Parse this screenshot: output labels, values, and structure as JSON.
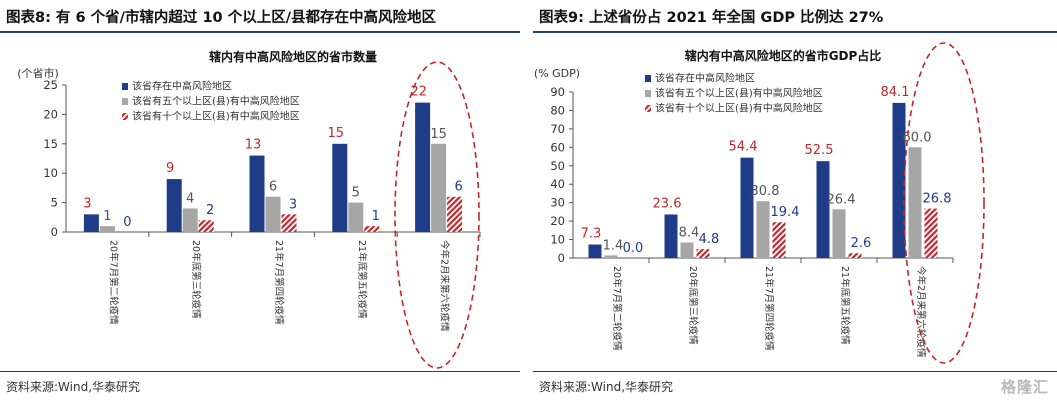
{
  "colors": {
    "navy": "#1f3c88",
    "gray": "#a6a6a6",
    "red": "#c0282d",
    "label_red": "#c0282d",
    "label_blue": "#1f3c88",
    "label_gray": "#555555",
    "axis": "#555555"
  },
  "footer": {
    "watermark": "格隆汇"
  },
  "panels": [
    {
      "title": "图表8:  有 6 个省/市辖内超过 10 个以上区/县都存在中高风险地区",
      "source": "资料来源:Wind,华泰研究",
      "chart_data": {
        "type": "bar",
        "title": "辖内有中高风险地区的省市数量",
        "ylabel": "(个省市)",
        "ylim": [
          0,
          25
        ],
        "yticks": [
          0,
          5,
          10,
          15,
          20,
          25
        ],
        "categories": [
          "20年7月第二轮疫情",
          "20年底第三轮疫情",
          "21年7月第四轮疫情",
          "21年底第五轮疫情",
          "今年2月来第六轮疫情"
        ],
        "series": [
          {
            "name": "该省存在中高风险地区",
            "values": [
              3,
              9,
              13,
              15,
              22
            ],
            "labels": [
              "3",
              "9",
              "13",
              "15",
              "22"
            ]
          },
          {
            "name": "该省有五个以上区(县)有中高风险地区",
            "values": [
              1,
              4,
              6,
              5,
              15
            ],
            "labels": [
              "1",
              "4",
              "6",
              "5",
              "15"
            ]
          },
          {
            "name": "该省有十个以上区(县)有中高风险地区",
            "values": [
              0,
              2,
              3,
              1,
              6
            ],
            "labels": [
              "0",
              "2",
              "3",
              "1",
              "6"
            ]
          }
        ],
        "highlight_category": 4
      }
    },
    {
      "title": "图表9:  上述省份占 2021 年全国 GDP 比例达 27%",
      "source": "资料来源:Wind,华泰研究",
      "chart_data": {
        "type": "bar",
        "title": "辖内有中高风险地区的省市GDP占比",
        "ylabel": "(% GDP)",
        "ylim": [
          0,
          90
        ],
        "yticks": [
          0,
          10,
          20,
          30,
          40,
          50,
          60,
          70,
          80,
          90
        ],
        "categories": [
          "20年7月第二轮疫情",
          "20年底第三轮疫情",
          "21年7月第四轮疫情",
          "21年底第五轮疫情",
          "今年2月来第六轮疫情"
        ],
        "series": [
          {
            "name": "该省存在中高风险地区",
            "values": [
              7.3,
              23.6,
              54.4,
              52.5,
              84.1
            ],
            "labels": [
              "7.3",
              "23.6",
              "54.4",
              "52.5",
              "84.1"
            ]
          },
          {
            "name": "该省有五个以上区(县)有中高风险地区",
            "values": [
              1.4,
              8.4,
              30.8,
              26.4,
              60.0
            ],
            "labels": [
              "1.4",
              "8.4",
              "30.8",
              "26.4",
              "60.0"
            ]
          },
          {
            "name": "该省有十个以上区(县)有中高风险地区",
            "values": [
              0.0,
              4.8,
              19.4,
              2.6,
              26.8
            ],
            "labels": [
              "0.0",
              "4.8",
              "19.4",
              "2.6",
              "26.8"
            ]
          }
        ],
        "highlight_category": 4
      }
    }
  ]
}
